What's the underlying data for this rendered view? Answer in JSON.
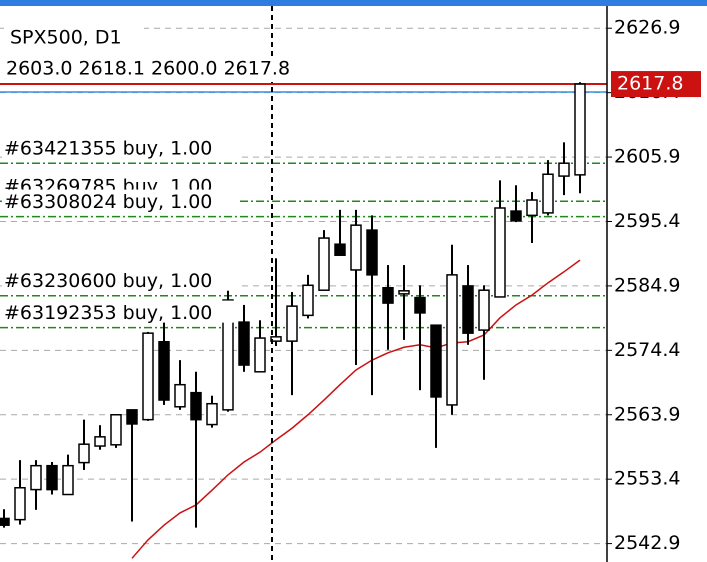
{
  "chart_data": {
    "type": "candlestick",
    "title": "SPX500, D1",
    "ohlc_text": "2603.0 2618.1 2600.0 2617.8",
    "ylim": [
      2539.9,
      2631.5
    ],
    "yticks": [
      2626.9,
      2616.4,
      2605.9,
      2595.4,
      2584.9,
      2574.4,
      2563.9,
      2553.4,
      2542.9
    ],
    "grid": true,
    "price_label": {
      "value": 2617.8,
      "label": "2617.8"
    },
    "ask_line": 2616.5,
    "open": [
      2547.0,
      2546.8,
      2551.7,
      2555.6,
      2550.9,
      2556.1,
      2558.8,
      2559.0,
      2564.7,
      2563.1,
      2575.8,
      2565.2,
      2567.5,
      2562.3,
      2564.7,
      2579.0,
      2570.9,
      2575.9,
      2575.9,
      2580.1,
      2584.2,
      2591.7,
      2587.5,
      2594.0,
      2584.6,
      2583.6,
      2583.0,
      2578.5,
      2565.5,
      2584.9,
      2577.7,
      2583.1,
      2597.1,
      2596.4,
      2596.8,
      2602.8,
      2603.0
    ],
    "high": [
      2548.5,
      2556.5,
      2556.5,
      2556.2,
      2557.4,
      2563.1,
      2562.2,
      2564.0,
      2564.7,
      2577.4,
      2579.3,
      2572.8,
      2570.9,
      2567.0,
      2584.6,
      2581.8,
      2579.3,
      2589.4,
      2583.9,
      2586.7,
      2594.0,
      2597.3,
      2597.3,
      2596.4,
      2588.3,
      2588.3,
      2585.0,
      2578.5,
      2591.6,
      2588.3,
      2585.0,
      2602.1,
      2601.3,
      2600.2,
      2605.4,
      2608.3,
      2618.1
    ],
    "low": [
      2545.5,
      2546.0,
      2548.4,
      2550.9,
      2550.9,
      2554.9,
      2558.2,
      2558.5,
      2546.5,
      2562.9,
      2565.5,
      2564.7,
      2545.5,
      2561.8,
      2564.4,
      2570.9,
      2570.9,
      2575.1,
      2567.1,
      2579.6,
      2584.2,
      2589.9,
      2572.0,
      2567.1,
      2574.5,
      2576.1,
      2567.9,
      2558.5,
      2563.9,
      2575.3,
      2569.6,
      2583.1,
      2595.3,
      2591.9,
      2596.4,
      2599.7,
      2600.0
    ],
    "close": [
      2545.9,
      2552.0,
      2555.6,
      2551.7,
      2555.6,
      2559.1,
      2560.3,
      2563.9,
      2562.4,
      2577.2,
      2566.3,
      2568.8,
      2563.1,
      2565.7,
      2582.6,
      2572.0,
      2576.4,
      2576.6,
      2581.6,
      2585.0,
      2592.7,
      2589.9,
      2594.8,
      2586.7,
      2582.1,
      2584.1,
      2580.5,
      2566.8,
      2586.7,
      2577.2,
      2584.2,
      2597.6,
      2595.5,
      2598.9,
      2603.1,
      2604.9,
      2617.8
    ],
    "ma": {
      "color": "#cc1111",
      "values": [
        null,
        null,
        null,
        null,
        null,
        null,
        null,
        null,
        2540.5,
        2543.5,
        2545.9,
        2547.9,
        2549.2,
        2551.6,
        2554.1,
        2556.2,
        2557.8,
        2559.8,
        2561.7,
        2563.9,
        2566.3,
        2568.8,
        2571.2,
        2572.8,
        2574.0,
        2574.9,
        2575.3,
        2574.8,
        2575.6,
        2575.8,
        2576.9,
        2579.7,
        2581.8,
        2583.4,
        2585.4,
        2587.2,
        2589.1
      ]
    },
    "orders": [
      {
        "label": "#63421355 buy, 1.00",
        "price": 2604.9
      },
      {
        "label": "#63269785 buy, 1.00",
        "price": 2598.7
      },
      {
        "label": "#63308024 buy, 1.00",
        "price": 2596.2
      },
      {
        "label": "#63230600 buy, 1.00",
        "price": 2583.3
      },
      {
        "label": "#63192353 buy, 1.00",
        "price": 2578.1
      }
    ]
  }
}
